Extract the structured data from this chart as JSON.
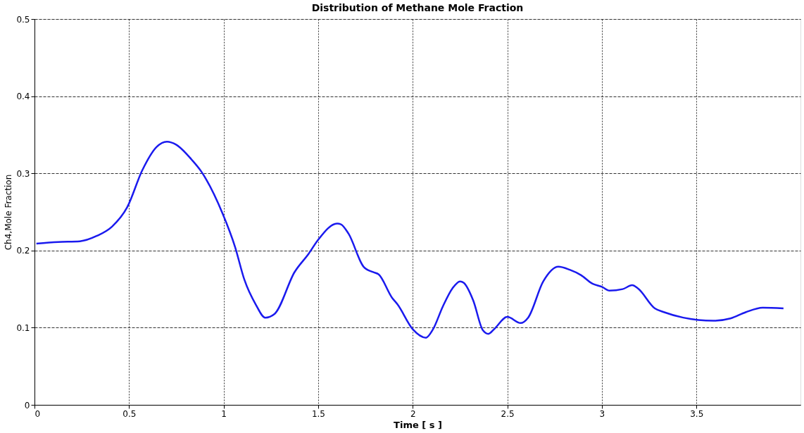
{
  "chart_data": {
    "type": "line",
    "title": "Distribution of Methane Mole Fraction",
    "xlabel": "Time [ s ]",
    "ylabel": "Ch4,Mole Fraction",
    "x": [
      0.01,
      0.125,
      0.24,
      0.33,
      0.41,
      0.49,
      0.57,
      0.645,
      0.7,
      0.75,
      0.83,
      0.88,
      0.996,
      1.06,
      1.11,
      1.17,
      1.22,
      1.27,
      1.375,
      1.45,
      1.5,
      1.6,
      1.62,
      1.66,
      1.74,
      1.79,
      1.82,
      1.89,
      1.92,
      2.0,
      2.07,
      2.105,
      2.16,
      2.21,
      2.25,
      2.27,
      2.32,
      2.37,
      2.4,
      2.43,
      2.5,
      2.57,
      2.61,
      2.69,
      2.77,
      2.83,
      2.89,
      2.95,
      3.0,
      3.04,
      3.11,
      3.16,
      3.19,
      3.28,
      3.33,
      3.43,
      3.51,
      3.59,
      3.68,
      3.76,
      3.85,
      3.96
    ],
    "series": [
      {
        "color": "#1a1aee",
        "values": [
          0.209,
          0.211,
          0.212,
          0.219,
          0.231,
          0.256,
          0.304,
          0.334,
          0.341,
          0.337,
          0.318,
          0.303,
          0.247,
          0.205,
          0.162,
          0.13,
          0.113,
          0.118,
          0.172,
          0.196,
          0.214,
          0.235,
          0.234,
          0.222,
          0.179,
          0.172,
          0.169,
          0.139,
          0.13,
          0.098,
          0.087,
          0.097,
          0.128,
          0.151,
          0.16,
          0.158,
          0.135,
          0.097,
          0.092,
          0.098,
          0.114,
          0.106,
          0.113,
          0.16,
          0.179,
          0.175,
          0.168,
          0.157,
          0.153,
          0.148,
          0.15,
          0.155,
          0.151,
          0.125,
          0.12,
          0.113,
          0.11,
          0.109,
          0.112,
          0.12,
          0.126,
          0.125
        ]
      }
    ],
    "xlim": [
      0,
      4.05
    ],
    "xticks": [
      0,
      0.5,
      1,
      1.5,
      2,
      2.5,
      3,
      3.5
    ],
    "ylim": [
      0,
      0.5
    ],
    "yticks": [
      0,
      0.1,
      0.2,
      0.3,
      0.4,
      0.5
    ],
    "grid": true,
    "line_style": "solid",
    "marker": "none"
  }
}
